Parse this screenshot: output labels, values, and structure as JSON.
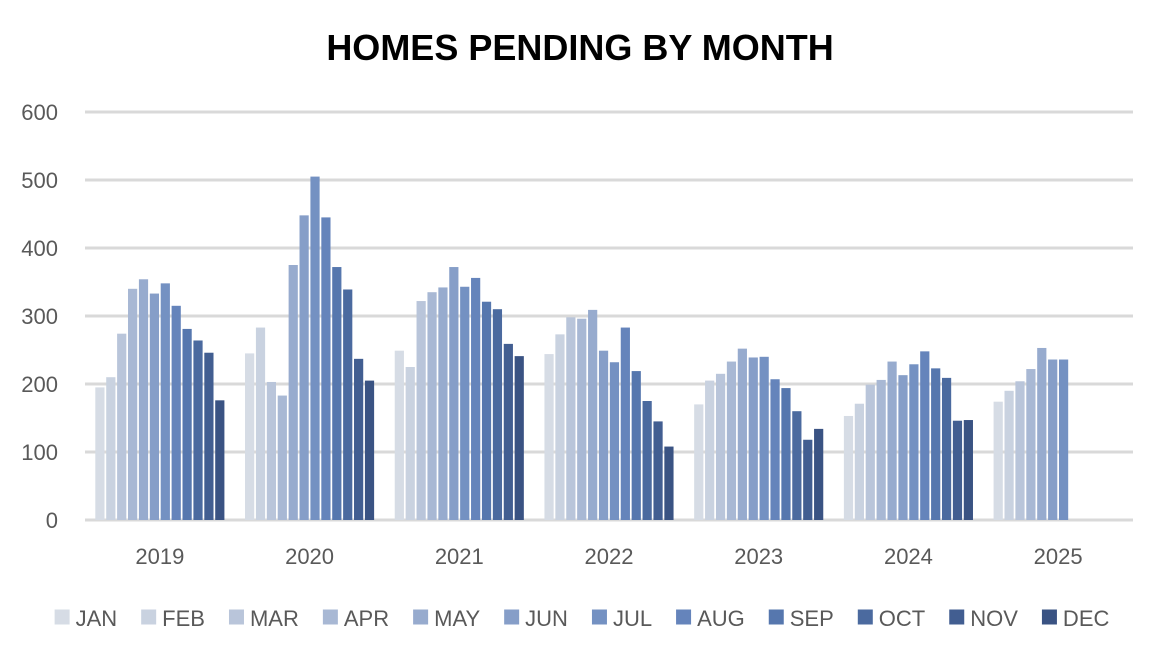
{
  "chart_data": {
    "type": "bar",
    "title": "HOMES PENDING BY MONTH",
    "xlabel": "",
    "ylabel": "",
    "ylim": [
      0,
      600
    ],
    "yticks": [
      0,
      100,
      200,
      300,
      400,
      500,
      600
    ],
    "grid": true,
    "legend_position": "bottom",
    "categories": [
      "2019",
      "2020",
      "2021",
      "2022",
      "2023",
      "2024",
      "2025"
    ],
    "series": [
      {
        "name": "JAN",
        "color": "#d6dce5",
        "values": [
          195,
          245,
          249,
          244,
          170,
          153,
          174
        ]
      },
      {
        "name": "FEB",
        "color": "#c9d2e0",
        "values": [
          210,
          283,
          225,
          273,
          205,
          171,
          190
        ]
      },
      {
        "name": "MAR",
        "color": "#b9c5da",
        "values": [
          274,
          203,
          322,
          298,
          215,
          199,
          204
        ]
      },
      {
        "name": "APR",
        "color": "#a8b8d4",
        "values": [
          340,
          183,
          335,
          296,
          233,
          206,
          222
        ]
      },
      {
        "name": "MAY",
        "color": "#97abce",
        "values": [
          354,
          375,
          342,
          309,
          252,
          233,
          253
        ]
      },
      {
        "name": "JUN",
        "color": "#869ec8",
        "values": [
          333,
          448,
          372,
          249,
          239,
          213,
          236
        ]
      },
      {
        "name": "JUL",
        "color": "#7491c2",
        "values": [
          348,
          505,
          343,
          232,
          240,
          229,
          236
        ]
      },
      {
        "name": "AUG",
        "color": "#6584bb",
        "values": [
          315,
          445,
          356,
          283,
          207,
          248,
          null
        ]
      },
      {
        "name": "SEP",
        "color": "#5677ae",
        "values": [
          281,
          372,
          321,
          219,
          194,
          223,
          null
        ]
      },
      {
        "name": "OCT",
        "color": "#4b6a9f",
        "values": [
          264,
          339,
          310,
          175,
          160,
          209,
          null
        ]
      },
      {
        "name": "NOV",
        "color": "#425e91",
        "values": [
          246,
          237,
          259,
          145,
          118,
          146,
          null
        ]
      },
      {
        "name": "DEC",
        "color": "#3a5383",
        "values": [
          176,
          205,
          241,
          108,
          134,
          147,
          null
        ]
      }
    ]
  }
}
